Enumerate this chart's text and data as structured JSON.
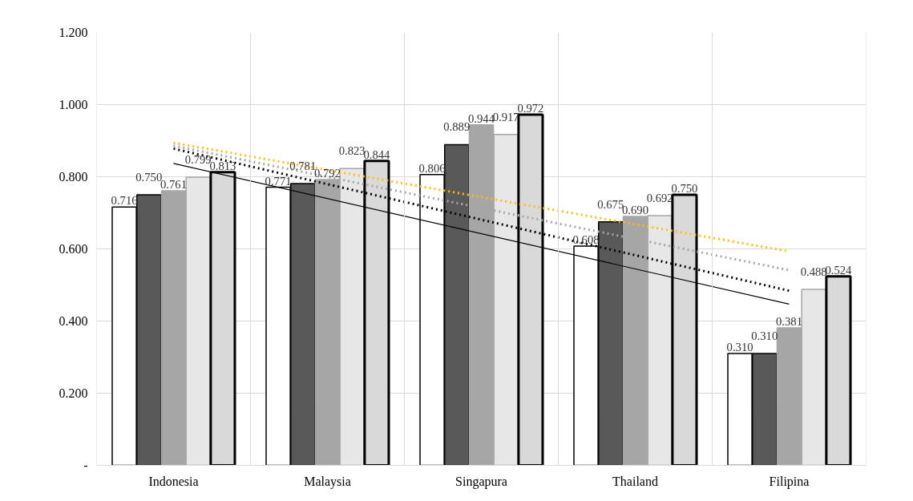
{
  "chart_data": {
    "type": "bar",
    "categories": [
      "Indonesia",
      "Malaysia",
      "Singapura",
      "Thailand",
      "Filipina"
    ],
    "series": [
      {
        "color": "#ffffff",
        "values": [
          0.716,
          0.771,
          0.806,
          0.608,
          0.31
        ],
        "value_labels": [
          "0.716",
          "0.771",
          "0.806",
          "0.608",
          "0.310"
        ]
      },
      {
        "color": "#595959",
        "values": [
          0.75,
          0.781,
          0.889,
          0.675,
          0.31
        ],
        "value_labels": [
          "0.750",
          "0.781",
          "0.889",
          "0.675",
          "0.310"
        ]
      },
      {
        "color": "#a6a6a6",
        "values": [
          0.761,
          0.792,
          0.944,
          0.69,
          0.381
        ],
        "value_labels": [
          "0.761",
          "0.792",
          "0.944",
          "0.690",
          "0.381"
        ]
      },
      {
        "color": "#e7e7e7",
        "values": [
          0.799,
          0.823,
          0.917,
          0.692,
          0.488
        ],
        "value_labels": [
          "0.799",
          "0.823",
          "0.917",
          "0.692",
          "0.488"
        ]
      },
      {
        "color": "#d9d9d9",
        "values": [
          0.813,
          0.844,
          0.972,
          0.75,
          0.524
        ],
        "value_labels": [
          "0.813",
          "0.844",
          "0.972",
          "0.750",
          "0.524"
        ]
      },
      {
        "type": "line",
        "color": "#000000",
        "line_style": "solid",
        "x": [
          "Indonesia",
          "Filipina"
        ],
        "values": [
          0.837,
          0.447
        ]
      },
      {
        "type": "line",
        "color": "#000000",
        "line_style": "dotted",
        "x": [
          "Indonesia",
          "Filipina"
        ],
        "values": [
          0.878,
          0.484
        ]
      },
      {
        "type": "line",
        "color": "#a6a6a6",
        "line_style": "dotted",
        "x": [
          "Indonesia",
          "Filipina"
        ],
        "values": [
          0.886,
          0.541
        ]
      },
      {
        "type": "line",
        "color": "#ffc000",
        "line_style": "dotted",
        "x": [
          "Indonesia",
          "Filipina"
        ],
        "values": [
          0.894,
          0.593
        ]
      }
    ],
    "ylim": [
      0,
      1.2
    ],
    "yticks": [
      {
        "value": 0,
        "label": "-"
      },
      {
        "value": 0.2,
        "label": "0.200"
      },
      {
        "value": 0.4,
        "label": "0.400"
      },
      {
        "value": 0.6,
        "label": "0.600"
      },
      {
        "value": 0.8,
        "label": "0.800"
      },
      {
        "value": 1.0,
        "label": "1.000"
      },
      {
        "value": 1.2,
        "label": "1.200"
      }
    ],
    "grid": true
  }
}
